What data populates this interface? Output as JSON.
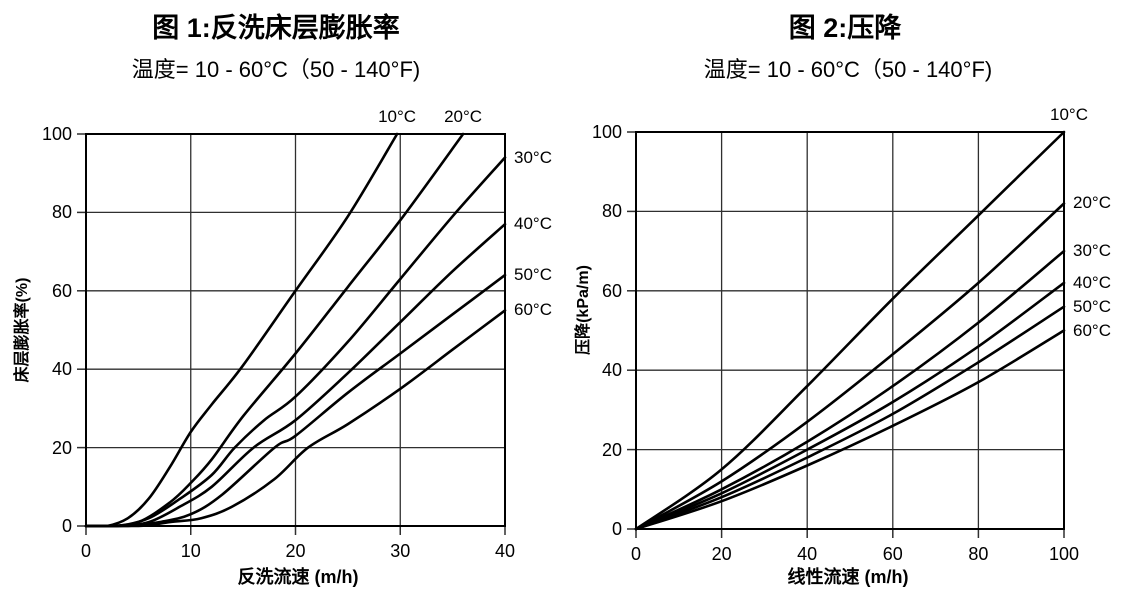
{
  "page": {
    "background": "#ffffff",
    "text_color": "#000000"
  },
  "charts": [
    {
      "id": "fig1",
      "title": "图 1:反洗床层膨胀率",
      "subtitle": "温度= 10 - 60°C（50 - 140°F)",
      "xlabel": "反洗流速 (m/h)",
      "ylabel": "床层膨胀率(%)",
      "chart_data": {
        "type": "line",
        "title": "图 1:反洗床层膨胀率",
        "subtitle": "温度= 10 - 60°C（50 - 140°F)",
        "xlabel": "反洗流速 (m/h)",
        "ylabel": "床层膨胀率(%)",
        "xlim": [
          0,
          40
        ],
        "ylim": [
          0,
          100
        ],
        "xticks": [
          0,
          10,
          20,
          30,
          40
        ],
        "yticks": [
          0,
          20,
          40,
          60,
          80,
          100
        ],
        "grid": true,
        "line_color": "#000000",
        "legend": "curve-end-labels",
        "series": [
          {
            "name": "10°C",
            "x": [
              0,
              2,
              4,
              6,
              8,
              10,
              12,
              15,
              20,
              25,
              29.7
            ],
            "y": [
              0,
              0,
              2,
              7,
              15,
              24,
              31,
              41,
              60,
              79,
              100
            ]
          },
          {
            "name": "20°C",
            "x": [
              0,
              2,
              5,
              8,
              10,
              12,
              15,
              20,
              25,
              30,
              36
            ],
            "y": [
              0,
              0,
              1,
              6,
              11,
              17,
              28,
              44,
              61,
              78,
              100
            ]
          },
          {
            "name": "30°C",
            "x": [
              0,
              3,
              6,
              9,
              12,
              14.2,
              17,
              20,
              25,
              30,
              35,
              40
            ],
            "y": [
              0,
              0,
              2,
              7,
              13,
              20,
              27,
              33,
              47,
              63,
              79,
              94
            ]
          },
          {
            "name": "40°C",
            "x": [
              0,
              3,
              6,
              9,
              12,
              16,
              20,
              25,
              30,
              35,
              40
            ],
            "y": [
              0,
              0,
              1,
              5,
              10,
              20,
              27,
              39,
              52,
              65,
              77
            ]
          },
          {
            "name": "50°C",
            "x": [
              0,
              4,
              7,
              10,
              13,
              18,
              20,
              25,
              30,
              35,
              40
            ],
            "y": [
              0,
              0,
              1,
              3,
              8,
              20,
              23,
              34,
              44,
              54,
              64
            ]
          },
          {
            "name": "60°C",
            "x": [
              0,
              5,
              8,
              11,
              14,
              18,
              21.2,
              25,
              30,
              35,
              40
            ],
            "y": [
              0,
              0,
              1,
              2,
              5,
              12,
              20,
              26,
              35,
              45,
              55
            ]
          }
        ]
      }
    },
    {
      "id": "fig2",
      "title": "图 2:压降",
      "subtitle": "温度= 10 - 60°C（50 - 140°F)",
      "xlabel": "线性流速 (m/h)",
      "ylabel": "压降(kPa/m)",
      "chart_data": {
        "type": "line",
        "title": "图 2:压降",
        "subtitle": "温度= 10 - 60°C（50 - 140°F)",
        "xlabel": "线性流速 (m/h)",
        "ylabel": "压降(kPa/m)",
        "xlim": [
          0,
          100
        ],
        "ylim": [
          0,
          100
        ],
        "xticks": [
          0,
          20,
          40,
          60,
          80,
          100
        ],
        "yticks": [
          0,
          20,
          40,
          60,
          80,
          100
        ],
        "grid": true,
        "line_color": "#000000",
        "legend": "curve-end-labels",
        "series": [
          {
            "name": "10°C",
            "x": [
              0,
              20,
              40,
              60,
              80,
              100
            ],
            "y": [
              0,
              15,
              36,
              58,
              79,
              100
            ],
            "label_dx": 5
          },
          {
            "name": "20°C",
            "x": [
              0,
              20,
              40,
              60,
              80,
              100
            ],
            "y": [
              0,
              12,
              27,
              44,
              62,
              82
            ]
          },
          {
            "name": "30°C",
            "x": [
              0,
              20,
              40,
              60,
              80,
              100
            ],
            "y": [
              0,
              10,
              22,
              36,
              52,
              70
            ]
          },
          {
            "name": "40°C",
            "x": [
              0,
              20,
              40,
              60,
              80,
              100
            ],
            "y": [
              0,
              9,
              20,
              32,
              46,
              62
            ]
          },
          {
            "name": "50°C",
            "x": [
              0,
              20,
              40,
              60,
              80,
              100
            ],
            "y": [
              0,
              8,
              18,
              29,
              42,
              56
            ]
          },
          {
            "name": "60°C",
            "x": [
              0,
              20,
              40,
              60,
              80,
              100
            ],
            "y": [
              0,
              7,
              16,
              26,
              37,
              50
            ]
          }
        ]
      }
    }
  ]
}
